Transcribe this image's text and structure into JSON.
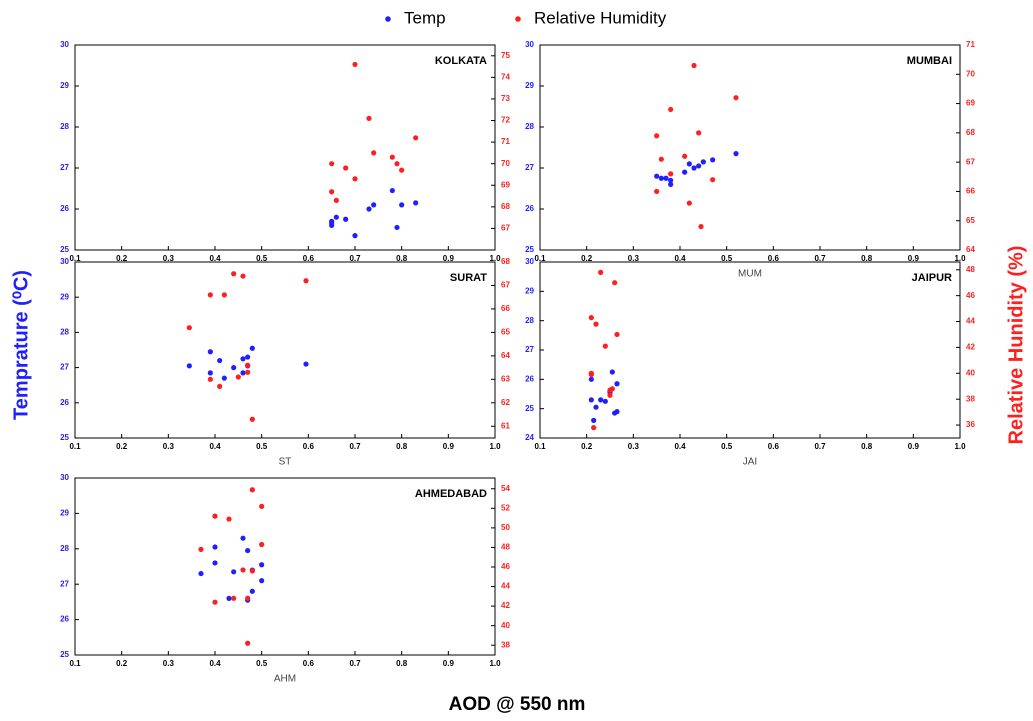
{
  "figure": {
    "legend": [
      {
        "name": "Temp",
        "color": "#1f1fff"
      },
      {
        "name": "Relative Humidity",
        "color": "#ff1f1f"
      }
    ],
    "ylabel": "Temprature (⁰C)",
    "y2label": "Relative Hunidity (%)",
    "xlabel": "AOD @ 550 nm"
  },
  "chart_data": [
    {
      "type": "scatter",
      "title": "KOLKATA",
      "xlim": [
        0.1,
        1
      ],
      "xticks": [
        0.1,
        0.2,
        0.3,
        0.4,
        0.5,
        0.6,
        0.7,
        0.8,
        0.9,
        {
          "value": 1,
          "label": "1.0"
        }
      ],
      "ylim": [
        25,
        30
      ],
      "yticks": [
        25,
        26,
        27,
        28,
        29,
        30
      ],
      "y2lim": [
        66,
        75.5
      ],
      "y2ticks": [
        67,
        68,
        69,
        70,
        71,
        72,
        73,
        74,
        75
      ],
      "series": [
        {
          "x": [
            0.65,
            0.65,
            0.66,
            0.68,
            0.7,
            0.73,
            0.74,
            0.78,
            0.79,
            0.8,
            0.83,
            0.65
          ],
          "values": [
            25.6,
            25.7,
            25.8,
            25.75,
            25.35,
            26.0,
            26.1,
            26.45,
            25.55,
            26.1,
            26.15,
            25.65
          ]
        },
        {
          "axis": "y2",
          "x": [
            0.65,
            0.65,
            0.66,
            0.68,
            0.7,
            0.7,
            0.73,
            0.74,
            0.78,
            0.79,
            0.8,
            0.83
          ],
          "values": [
            70.0,
            68.7,
            68.3,
            69.8,
            69.3,
            74.6,
            72.1,
            70.5,
            70.3,
            70.0,
            69.7,
            71.2
          ]
        }
      ]
    },
    {
      "type": "scatter",
      "title": "MUMBAI",
      "xlabel": "MUM",
      "xlim": [
        0.1,
        1
      ],
      "xticks": [
        0.1,
        0.2,
        0.3,
        0.4,
        0.5,
        0.6,
        0.7,
        0.8,
        0.9,
        {
          "value": 1,
          "label": "1.0"
        }
      ],
      "ylim": [
        25,
        30
      ],
      "yticks": [
        25,
        26,
        27,
        28,
        29,
        30
      ],
      "y2lim": [
        64,
        71
      ],
      "y2ticks": [
        64,
        65,
        66,
        67,
        68,
        69,
        70,
        71
      ],
      "series": [
        {
          "x": [
            0.36,
            0.37,
            0.38,
            0.38,
            0.41,
            0.42,
            0.43,
            0.44,
            0.45,
            0.47,
            0.52,
            0.35
          ],
          "values": [
            26.75,
            26.75,
            26.6,
            26.7,
            26.9,
            27.1,
            27.0,
            27.05,
            27.15,
            27.2,
            27.35,
            26.8
          ]
        },
        {
          "axis": "y2",
          "x": [
            0.35,
            0.36,
            0.38,
            0.38,
            0.41,
            0.42,
            0.43,
            0.44,
            0.445,
            0.47,
            0.52,
            0.35
          ],
          "values": [
            67.9,
            67.1,
            68.8,
            66.6,
            67.2,
            65.6,
            70.3,
            68.0,
            64.8,
            66.4,
            69.2,
            66.0
          ]
        }
      ]
    },
    {
      "type": "scatter",
      "title": "SURAT",
      "xlabel": "ST",
      "xlim": [
        0.1,
        1
      ],
      "xticks": [
        0.1,
        0.2,
        0.3,
        0.4,
        0.5,
        0.6,
        0.7,
        0.8,
        0.9,
        {
          "value": 1,
          "label": "1.0"
        }
      ],
      "ylim": [
        25,
        30
      ],
      "yticks": [
        25,
        26,
        27,
        28,
        29,
        30
      ],
      "y2lim": [
        60.5,
        68
      ],
      "y2ticks": [
        61,
        62,
        63,
        64,
        65,
        66,
        67,
        68
      ],
      "series": [
        {
          "x": [
            0.345,
            0.39,
            0.39,
            0.41,
            0.42,
            0.44,
            0.46,
            0.46,
            0.47,
            0.48,
            0.47,
            0.595
          ],
          "values": [
            27.05,
            26.85,
            27.45,
            27.2,
            26.7,
            27.0,
            26.85,
            27.25,
            27.3,
            27.55,
            27.05,
            27.1
          ]
        },
        {
          "axis": "y2",
          "x": [
            0.345,
            0.39,
            0.39,
            0.41,
            0.42,
            0.44,
            0.46,
            0.45,
            0.47,
            0.47,
            0.48,
            0.595
          ],
          "values": [
            65.2,
            66.6,
            63.0,
            62.7,
            66.6,
            67.5,
            67.4,
            63.1,
            63.3,
            63.6,
            61.3,
            67.2
          ]
        }
      ]
    },
    {
      "type": "scatter",
      "title": "JAIPUR",
      "xlabel": "JAI",
      "xlim": [
        0.1,
        1
      ],
      "xticks": [
        0.1,
        0.2,
        0.3,
        0.4,
        0.5,
        0.6,
        0.7,
        0.8,
        0.9,
        {
          "value": 1,
          "label": "1.0"
        }
      ],
      "ylim": [
        24,
        30
      ],
      "yticks": [
        24,
        25,
        26,
        27,
        28,
        29,
        30
      ],
      "y2lim": [
        35,
        48.6
      ],
      "y2ticks": [
        36,
        38,
        40,
        42,
        44,
        46,
        48
      ],
      "series": [
        {
          "x": [
            0.21,
            0.21,
            0.215,
            0.22,
            0.23,
            0.24,
            0.25,
            0.255,
            0.26,
            0.265,
            0.265,
            0.25
          ],
          "values": [
            26.0,
            25.3,
            24.6,
            25.05,
            25.3,
            25.25,
            25.55,
            26.25,
            24.85,
            24.9,
            25.85,
            25.6
          ]
        },
        {
          "axis": "y2",
          "x": [
            0.21,
            0.21,
            0.215,
            0.22,
            0.23,
            0.24,
            0.25,
            0.25,
            0.255,
            0.26,
            0.265,
            0.21
          ],
          "values": [
            40.0,
            44.3,
            35.8,
            43.8,
            47.8,
            42.1,
            38.7,
            38.3,
            38.8,
            47.0,
            43.0,
            39.9
          ]
        }
      ]
    },
    {
      "type": "scatter",
      "title": "AHMEDABAD",
      "xlabel": "AHM",
      "xlim": [
        0.1,
        1
      ],
      "xticks": [
        0.1,
        0.2,
        0.3,
        0.4,
        0.5,
        0.6,
        0.7,
        0.8,
        0.9,
        {
          "value": 1,
          "label": "1.0"
        }
      ],
      "ylim": [
        25,
        30
      ],
      "yticks": [
        25,
        26,
        27,
        28,
        29,
        30
      ],
      "y2lim": [
        37,
        55.1
      ],
      "y2ticks": [
        38,
        40,
        42,
        44,
        46,
        48,
        50,
        52,
        54
      ],
      "series": [
        {
          "x": [
            0.37,
            0.4,
            0.4,
            0.43,
            0.44,
            0.46,
            0.47,
            0.48,
            0.48,
            0.5,
            0.5,
            0.47
          ],
          "values": [
            27.3,
            28.05,
            27.6,
            26.6,
            27.35,
            28.3,
            27.95,
            27.4,
            26.8,
            27.1,
            27.55,
            26.55
          ]
        },
        {
          "axis": "y2",
          "x": [
            0.37,
            0.4,
            0.4,
            0.43,
            0.44,
            0.46,
            0.47,
            0.47,
            0.48,
            0.48,
            0.5,
            0.5
          ],
          "values": [
            47.8,
            51.2,
            42.4,
            50.9,
            42.8,
            45.7,
            38.2,
            42.8,
            53.9,
            45.6,
            52.2,
            48.3
          ]
        }
      ]
    }
  ]
}
